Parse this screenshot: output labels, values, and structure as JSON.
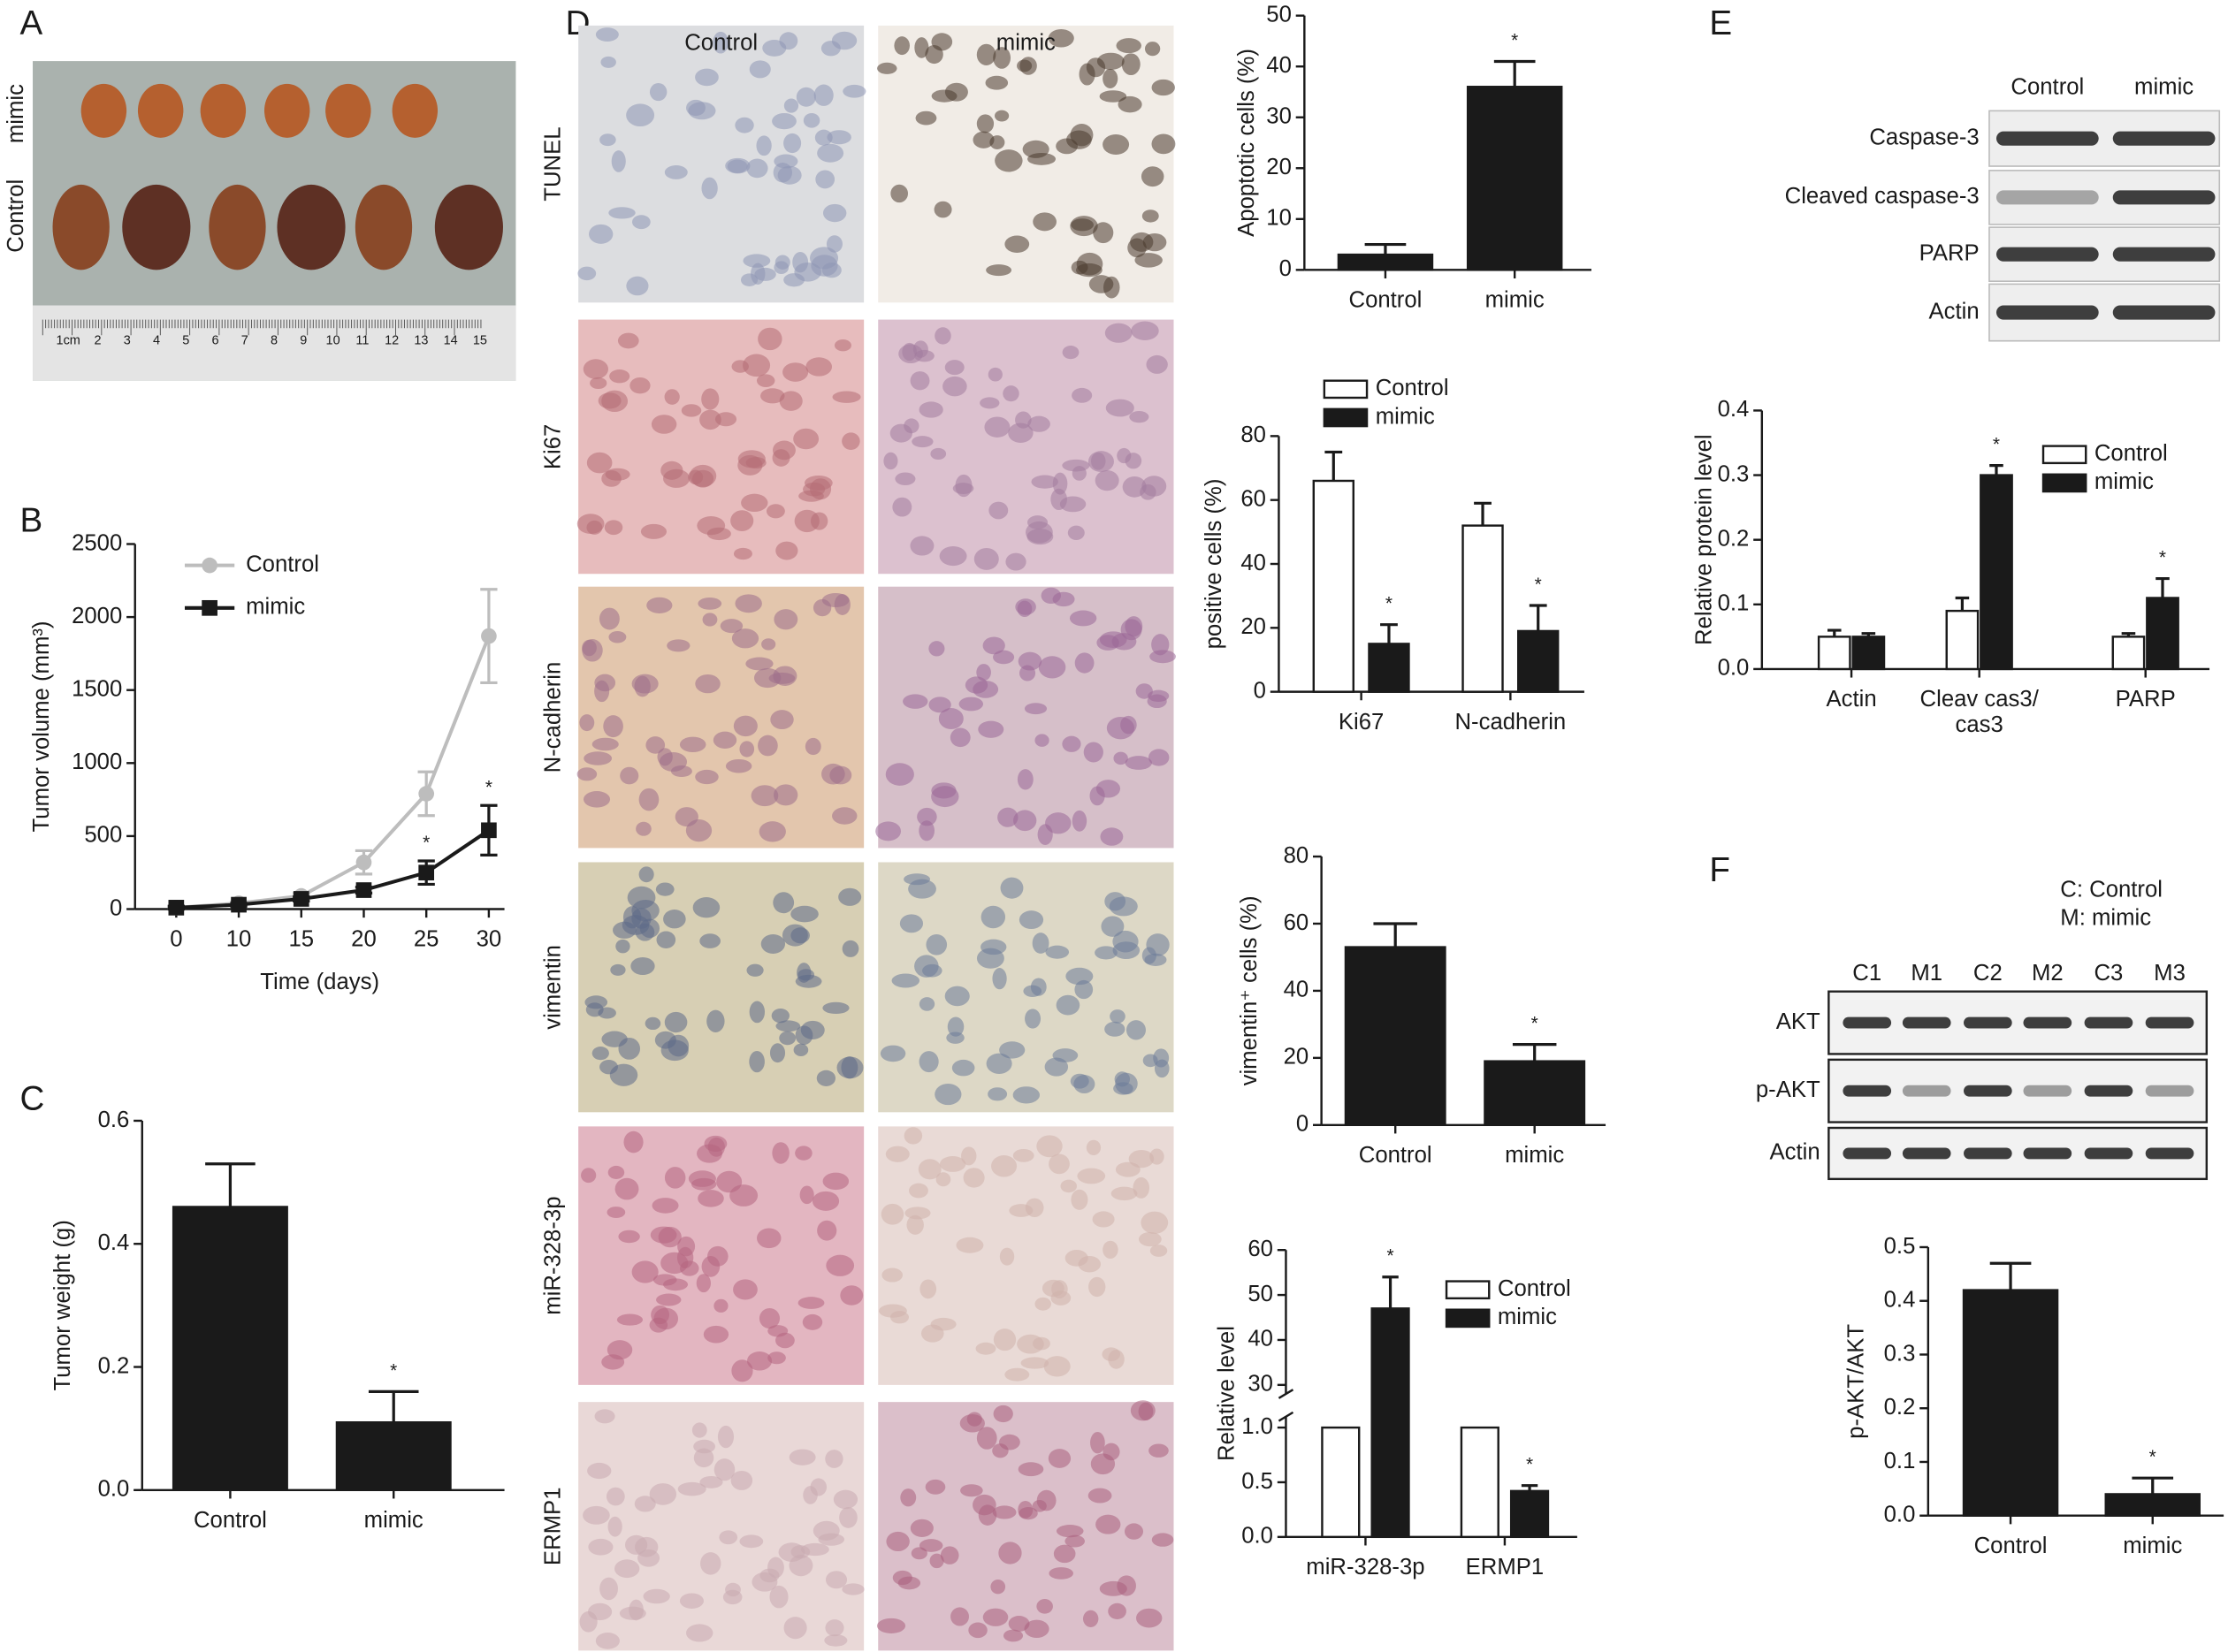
{
  "panels": {
    "letters": [
      "A",
      "B",
      "C",
      "D",
      "E",
      "F"
    ],
    "A": {
      "rows": [
        "mimic",
        "Control"
      ],
      "ruler": [
        "1cm",
        "2",
        "3",
        "4",
        "5",
        "6",
        "7",
        "8",
        "9",
        "10",
        "11",
        "12",
        "13",
        "14",
        "15"
      ]
    },
    "D": {
      "columns": [
        "Control",
        "mimic"
      ],
      "rows": [
        "TUNEL",
        "Ki67",
        "N-cadherin",
        "vimentin",
        "miR-328-3p",
        "ERMP1"
      ]
    },
    "E": {
      "columns": [
        "Control",
        "mimic"
      ],
      "rows": [
        "Caspase-3",
        "Cleaved caspase-3",
        "PARP",
        "Actin"
      ]
    },
    "F": {
      "legend": [
        "C: Control",
        "M: mimic"
      ],
      "lanes": [
        "C1",
        "M1",
        "C2",
        "M2",
        "C3",
        "M3"
      ],
      "rows": [
        "AKT",
        "p-AKT",
        "Actin"
      ]
    }
  },
  "chart_data": [
    {
      "type": "line",
      "xlabel": "Time (days)",
      "ylabel": "Tumor volume (mm³)",
      "categories": [
        "0",
        "10",
        "15",
        "20",
        "25",
        "30"
      ],
      "series": [
        {
          "name": "Control",
          "color": "#bdbdbd",
          "marker": "circle",
          "values": [
            10,
            40,
            90,
            320,
            790,
            1870
          ],
          "errors": [
            10,
            10,
            20,
            80,
            150,
            320
          ]
        },
        {
          "name": "mimic",
          "color": "#1a1a1a",
          "marker": "square",
          "values": [
            10,
            30,
            70,
            130,
            250,
            540
          ],
          "errors": [
            10,
            10,
            15,
            20,
            80,
            170
          ],
          "significance": [
            null,
            null,
            null,
            null,
            "*",
            "*"
          ]
        }
      ],
      "ylim": [
        0,
        2500
      ],
      "yticks": [
        0,
        500,
        1000,
        1500,
        2000,
        2500
      ],
      "legend": "upper left"
    },
    {
      "type": "bar",
      "ylabel": "Tumor weight (g)",
      "categories": [
        "Control",
        "mimic"
      ],
      "series": [
        {
          "color": "#1a1a1a",
          "values": [
            0.46,
            0.11
          ],
          "errors": [
            0.07,
            0.05
          ],
          "significance": [
            null,
            "*"
          ]
        }
      ],
      "ylim": [
        0,
        0.6
      ],
      "yticks": [
        {
          "value": 0,
          "label": "0.0"
        },
        0.2,
        0.4,
        0.6
      ]
    },
    {
      "type": "bar",
      "ylabel": "Apoptotic cells (%)",
      "categories": [
        "Control",
        "mimic"
      ],
      "series": [
        {
          "color": "#1a1a1a",
          "values": [
            3,
            36
          ],
          "errors": [
            2,
            5
          ],
          "significance": [
            null,
            "*"
          ]
        }
      ],
      "ylim": [
        0,
        50
      ],
      "yticks": [
        0,
        10,
        20,
        30,
        40,
        50
      ]
    },
    {
      "type": "bar",
      "ylabel": "positive cells (%)",
      "categories": [
        "Ki67",
        "N-cadherin"
      ],
      "series": [
        {
          "name": "Control",
          "color": "#ffffff",
          "values": [
            66,
            52
          ],
          "errors": [
            9,
            7
          ]
        },
        {
          "name": "mimic",
          "color": "#1a1a1a",
          "values": [
            15,
            19
          ],
          "errors": [
            6,
            8
          ],
          "significance": [
            "*",
            "*"
          ]
        }
      ],
      "ylim": [
        0,
        80
      ],
      "yticks": [
        0,
        20,
        40,
        60,
        80
      ],
      "legend": "upper left"
    },
    {
      "type": "bar",
      "ylabel": "vimentin⁺ cells (%)",
      "categories": [
        "Control",
        "mimic"
      ],
      "series": [
        {
          "color": "#1a1a1a",
          "values": [
            53,
            19
          ],
          "errors": [
            7,
            5
          ],
          "significance": [
            null,
            "*"
          ]
        }
      ],
      "ylim": [
        0,
        80
      ],
      "yticks": [
        0,
        20,
        40,
        60,
        80
      ]
    },
    {
      "type": "bar",
      "ylabel": "Relative level",
      "categories": [
        "miR-328-3p",
        "ERMP1"
      ],
      "axis_break": true,
      "series": [
        {
          "name": "Control",
          "color": "#ffffff",
          "values": [
            1.0,
            1.0
          ]
        },
        {
          "name": "mimic",
          "color": "#1a1a1a",
          "values": [
            47,
            0.42
          ],
          "errors": [
            7,
            0.05
          ],
          "significance": [
            "*",
            "*"
          ]
        }
      ],
      "ylim": [
        0,
        1.1
      ],
      "yticks": [
        {
          "value": 0,
          "label": "0.0"
        },
        {
          "value": 0.5,
          "label": "0.5"
        },
        {
          "value": 1,
          "label": "1.0"
        }
      ],
      "ylim_upper": [
        28,
        60
      ],
      "yticks_upper": [
        30,
        40,
        50,
        60
      ],
      "legend": "upper right"
    },
    {
      "type": "bar",
      "ylabel": "Relative protein level",
      "categories": [
        "Actin",
        [
          "Cleav cas3/",
          "cas3"
        ],
        "PARP"
      ],
      "series": [
        {
          "name": "Control",
          "color": "#ffffff",
          "values": [
            0.05,
            0.09,
            0.05
          ],
          "errors": [
            0.01,
            0.02,
            0.005
          ]
        },
        {
          "name": "mimic",
          "color": "#1a1a1a",
          "values": [
            0.05,
            0.3,
            0.11
          ],
          "errors": [
            0.005,
            0.015,
            0.03
          ],
          "significance": [
            null,
            "*",
            "*"
          ]
        }
      ],
      "ylim": [
        0,
        0.4
      ],
      "yticks": [
        {
          "value": 0,
          "label": "0.0"
        },
        0.1,
        0.2,
        0.3,
        0.4
      ],
      "legend": "upper right"
    },
    {
      "type": "bar",
      "ylabel": "p-AKT/AKT",
      "categories": [
        "Control",
        "mimic"
      ],
      "series": [
        {
          "color": "#1a1a1a",
          "values": [
            0.42,
            0.04
          ],
          "errors": [
            0.05,
            0.03
          ],
          "significance": [
            null,
            "*"
          ]
        }
      ],
      "ylim": [
        0,
        0.5
      ],
      "yticks": [
        {
          "value": 0,
          "label": "0.0"
        },
        0.1,
        0.2,
        0.3,
        0.4,
        0.5
      ]
    }
  ]
}
